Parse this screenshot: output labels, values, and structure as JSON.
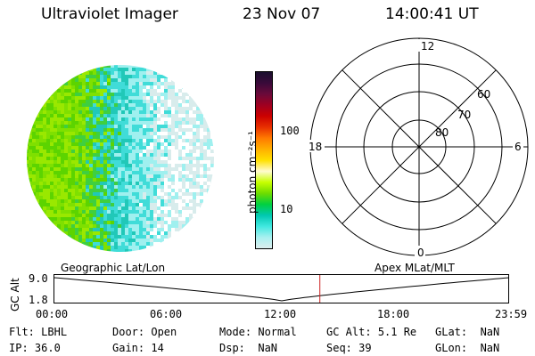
{
  "header": {
    "title": "Ultraviolet Imager",
    "date": "23 Nov 07",
    "time": "14:00:41 UT"
  },
  "colorbar": {
    "unit_label": "photon cm⁻²s⁻¹",
    "ticks": [
      "100",
      "10"
    ],
    "colors": [
      "#1a0f2e",
      "#3a0a3a",
      "#6b0a3a",
      "#a00020",
      "#cc0000",
      "#e83000",
      "#ff7a00",
      "#ffb000",
      "#ffe000",
      "#fffbd0",
      "#c8ff00",
      "#6edc00",
      "#00d040",
      "#00c8b0",
      "#40e8e0",
      "#a8f0f0",
      "#ddeeee"
    ]
  },
  "polar": {
    "mlt_labels": [
      "12",
      "18",
      "6",
      "0"
    ],
    "lat_labels": [
      "60",
      "70",
      "80"
    ]
  },
  "timeline": {
    "left_label": "Geographic Lat/Lon",
    "right_label": "Apex MLat/MLT",
    "y_axis_title": "GC Alt",
    "y_ticks": [
      "9.0",
      "1.8"
    ],
    "x_ticks": [
      "00:00",
      "06:00",
      "12:00",
      "18:00",
      "23:59"
    ],
    "current_time_hours": 14.01
  },
  "status": {
    "flt_label": "Flt:",
    "flt_value": "LBHL",
    "ip_label": "IP:",
    "ip_value": "36.0",
    "door_label": "Door:",
    "door_value": "Open",
    "gain_label": "Gain:",
    "gain_value": "14",
    "mode_label": "Mode:",
    "mode_value": "Normal",
    "dsp_label": "Dsp:",
    "dsp_value": "NaN",
    "gcalt_label": "GC Alt:",
    "gcalt_value": "5.1 Re",
    "seq_label": "Seq:",
    "seq_value": "39",
    "glat_label": "GLat:",
    "glat_value": "NaN",
    "glon_label": "GLon:",
    "glon_value": "NaN"
  },
  "colors": {
    "accent_marker": "#cc2222"
  }
}
